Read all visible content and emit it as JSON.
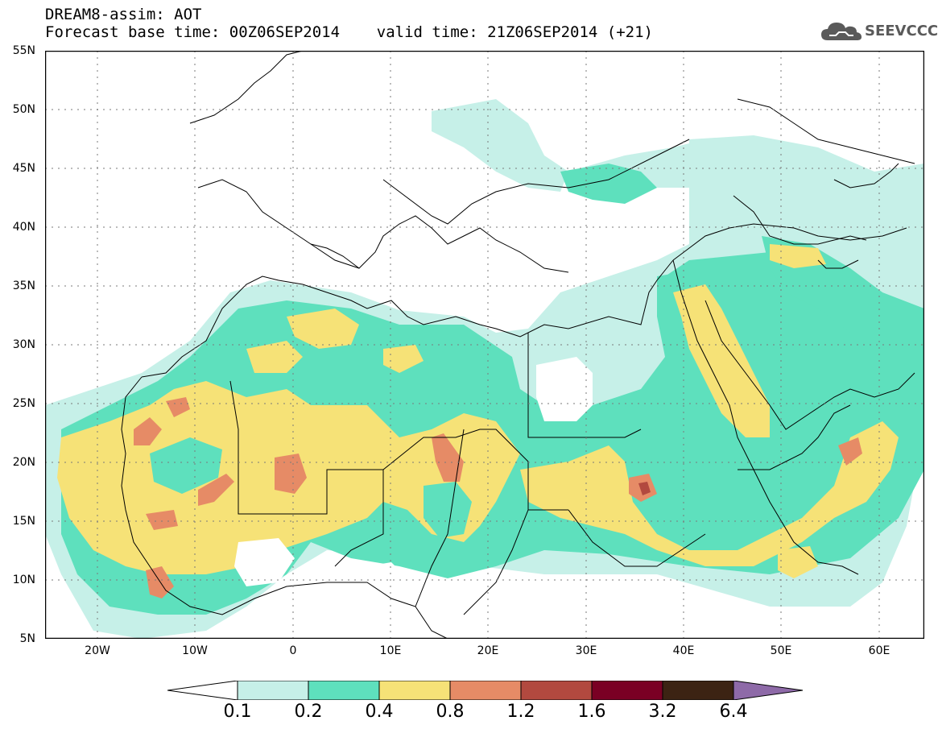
{
  "title": {
    "line1": "DREAM8-assim: AOT",
    "line2": "Forecast base time: 00Z06SEP2014    valid time: 21Z06SEP2014 (+21)"
  },
  "logo": {
    "text": "SEEVCCC",
    "icon": "cloud-icon"
  },
  "map": {
    "projection": "lat-lon",
    "lon_range": [
      -25,
      65
    ],
    "lat_range": [
      5,
      55
    ],
    "grid": "dotted",
    "lat_labels": [
      "55N",
      "50N",
      "45N",
      "40N",
      "35N",
      "30N",
      "25N",
      "20N",
      "15N",
      "10N",
      "5N"
    ],
    "lon_labels": [
      "20W",
      "10W",
      "0",
      "10E",
      "20E",
      "30E",
      "40E",
      "50E",
      "60E"
    ]
  },
  "colorbar": {
    "levels": [
      "0.1",
      "0.2",
      "0.4",
      "0.8",
      "1.2",
      "1.6",
      "3.2",
      "6.4"
    ],
    "colors": [
      "#ffffff",
      "#c6f0e8",
      "#5ee0bd",
      "#f6e277",
      "#e68b66",
      "#b2493f",
      "#7a0024",
      "#3c2313",
      "#8e6aa8"
    ]
  }
}
